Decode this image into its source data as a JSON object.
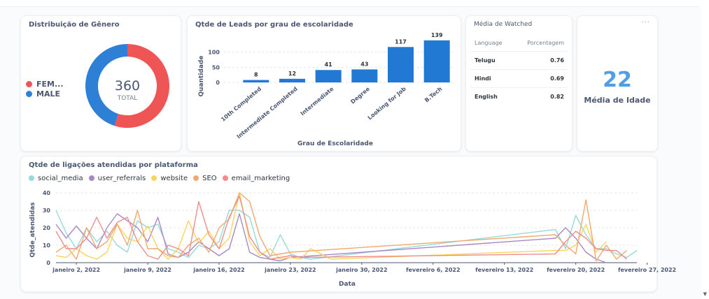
{
  "colors": {
    "female": "#ef5555",
    "male": "#2d80d6",
    "bar": "#2179d4",
    "scalar": "#509ee3",
    "social_media": "#98d9d9",
    "user_referrals": "#a989c5",
    "website": "#f9d45c",
    "SEO": "#f2a86f",
    "email_marketing": "#ef8c8c"
  },
  "gender_card": {
    "title": "Distribuição de Gênero",
    "legend": [
      {
        "label": "FEM...",
        "color": "#ef5555"
      },
      {
        "label": "MALE",
        "color": "#2d80d6"
      }
    ],
    "total_value": "360",
    "total_label": "TOTAL",
    "slices": [
      {
        "name": "FEMALE",
        "fraction": 0.55
      },
      {
        "name": "MALE",
        "fraction": 0.45
      }
    ]
  },
  "leads_card": {
    "title": "Qtde de Leads por grau de escolaridade",
    "chart_data": {
      "type": "bar",
      "categories": [
        "10th Completed",
        "Intermediate Completed",
        "Intermediate",
        "Degree",
        "Looking for Job",
        "B.Tech"
      ],
      "values": [
        8,
        12,
        41,
        43,
        117,
        139
      ],
      "xlabel": "Grau de Escolaridade",
      "ylabel": "Quantidade",
      "yticks": [
        "0",
        "50",
        "100"
      ],
      "ylim": [
        0,
        150
      ]
    }
  },
  "watched_card": {
    "title": "Média de Watched",
    "columns": [
      "Language",
      "Porcentagem"
    ],
    "rows": [
      {
        "language": "Telugu",
        "value": "0.76"
      },
      {
        "language": "Hindi",
        "value": "0.69"
      },
      {
        "language": "English",
        "value": "0.82"
      }
    ]
  },
  "age_card": {
    "menu": "···",
    "value": "22",
    "label": "Média de Idade"
  },
  "calls_card": {
    "title": "Qtde de ligações atendidas por plataforma",
    "chart_data": {
      "type": "line",
      "xlabel": "Data",
      "ylabel": "Qtde_atendidas",
      "ylim": [
        0,
        40
      ],
      "yticks": [
        "0",
        "10",
        "20",
        "30",
        "40"
      ],
      "xticks": [
        "janeiro 2, 2022",
        "janeiro 9, 2022",
        "janeiro 16, 2022",
        "janeiro 23, 2022",
        "janeiro 30, 2022",
        "fevereiro 6, 2022",
        "fevereiro 13, 2022",
        "fevereiro 20, 2022",
        "fevereiro 27, 2022"
      ],
      "series": [
        {
          "name": "social_media",
          "color": "#98d9d9",
          "x": [
            1,
            2,
            3,
            4,
            5,
            6,
            7,
            8,
            9,
            10,
            11,
            12,
            13,
            14,
            15,
            16,
            17,
            18,
            19,
            20,
            21,
            22,
            23,
            24,
            25,
            26,
            50,
            51,
            52,
            53,
            54,
            55,
            56,
            57,
            58
          ],
          "y": [
            30,
            17,
            8,
            20,
            12,
            18,
            10,
            6,
            24,
            20,
            22,
            8,
            6,
            3,
            10,
            8,
            12,
            30,
            30,
            26,
            6,
            3,
            16,
            5,
            3,
            2,
            19,
            8,
            27,
            16,
            8,
            8,
            5,
            3,
            7
          ]
        },
        {
          "name": "user_referrals",
          "color": "#a989c5",
          "x": [
            1,
            2,
            3,
            4,
            5,
            6,
            7,
            8,
            9,
            10,
            11,
            12,
            13,
            14,
            15,
            16,
            17,
            18,
            19,
            20,
            21,
            22,
            23,
            24,
            50,
            51,
            52,
            53,
            54,
            55
          ],
          "y": [
            22,
            14,
            21,
            14,
            8,
            20,
            28,
            24,
            20,
            12,
            26,
            5,
            3,
            6,
            12,
            8,
            4,
            8,
            28,
            6,
            3,
            2,
            1,
            3,
            14,
            20,
            14,
            6,
            2,
            0
          ]
        },
        {
          "name": "website",
          "color": "#f9d45c",
          "x": [
            1,
            2,
            3,
            4,
            5,
            6,
            7,
            8,
            9,
            10,
            11,
            12,
            13,
            14,
            15,
            16,
            17,
            18,
            19,
            20,
            21,
            22,
            23,
            24,
            25,
            26,
            27,
            28,
            50,
            51,
            52,
            53,
            54,
            55
          ],
          "y": [
            4,
            3,
            8,
            4,
            2,
            6,
            22,
            14,
            12,
            21,
            8,
            2,
            8,
            24,
            11,
            18,
            8,
            14,
            40,
            12,
            4,
            8,
            2,
            3,
            2,
            8,
            5,
            2,
            7,
            7,
            10,
            22,
            6,
            12
          ]
        },
        {
          "name": "SEO",
          "color": "#f2a86f",
          "x": [
            1,
            2,
            3,
            4,
            5,
            6,
            7,
            8,
            9,
            10,
            11,
            12,
            13,
            14,
            15,
            16,
            17,
            18,
            19,
            20,
            21,
            22,
            23,
            24,
            50,
            51,
            52,
            53,
            54,
            55,
            56,
            57
          ],
          "y": [
            6,
            10,
            2,
            20,
            8,
            12,
            22,
            10,
            30,
            8,
            8,
            4,
            3,
            10,
            14,
            6,
            20,
            25,
            40,
            35,
            15,
            4,
            5,
            6,
            16,
            10,
            5,
            36,
            1,
            10,
            2,
            7
          ]
        },
        {
          "name": "email_marketing",
          "color": "#ef8c8c",
          "x": [
            1,
            2,
            3,
            4,
            5,
            6,
            7,
            8,
            9,
            10,
            11,
            12,
            13,
            14,
            15,
            16,
            17,
            18,
            19,
            20,
            21,
            22,
            23,
            24,
            25,
            50,
            51,
            52,
            53,
            54,
            55,
            56,
            57
          ],
          "y": [
            18,
            8,
            8,
            14,
            26,
            14,
            23,
            26,
            12,
            4,
            2,
            10,
            8,
            4,
            35,
            16,
            8,
            26,
            38,
            15,
            6,
            2,
            3,
            4,
            3,
            5,
            12,
            18,
            14,
            8,
            7,
            7,
            2
          ]
        }
      ]
    }
  }
}
